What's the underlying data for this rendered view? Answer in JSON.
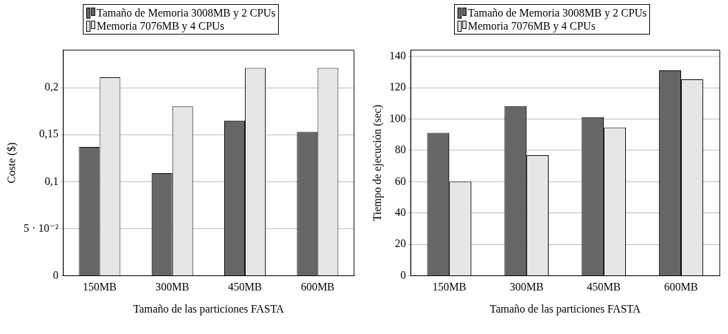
{
  "chart_data": [
    {
      "type": "bar",
      "xlabel": "Tamaño de las particiones FASTA",
      "ylabel": "Coste ($)",
      "categories": [
        "150MB",
        "300MB",
        "450MB",
        "600MB"
      ],
      "series": [
        {
          "name": "Tamaño de Memoria 3008MB y 2 CPUs",
          "color": "#666666",
          "values": [
            0.137,
            0.109,
            0.165,
            0.153
          ]
        },
        {
          "name": "Memoria 7076MB y 4 CPUs",
          "color": "#e6e6e6",
          "values": [
            0.211,
            0.18,
            0.221,
            0.221
          ]
        }
      ],
      "ylim": [
        0,
        0.24
      ],
      "yticks": [
        0,
        {
          "value": 0.05,
          "label": "5 · 10⁻²"
        },
        {
          "value": 0.1,
          "label": "0,1"
        },
        {
          "value": 0.15,
          "label": "0,15"
        },
        {
          "value": 0.2,
          "label": "0,2"
        }
      ],
      "grid": "y",
      "legend": "top"
    },
    {
      "type": "bar",
      "xlabel": "Tamaño de las particiones FASTA",
      "ylabel": "Tiempo de ejecución (sec)",
      "categories": [
        "150MB",
        "300MB",
        "450MB",
        "600MB"
      ],
      "series": [
        {
          "name": "Tamaño de Memoria 3008MB y 2 CPUs",
          "color": "#666666",
          "values": [
            91.2,
            108.3,
            101.2,
            131.1
          ]
        },
        {
          "name": "Memoria 7076MB y 4 CPUs",
          "color": "#e6e6e6",
          "values": [
            60,
            76.9,
            94.6,
            125.3
          ]
        }
      ],
      "ylim": [
        0,
        144
      ],
      "yticks": [
        0,
        20,
        40,
        60,
        80,
        100,
        120,
        140
      ],
      "grid": "y",
      "legend": "top"
    }
  ]
}
